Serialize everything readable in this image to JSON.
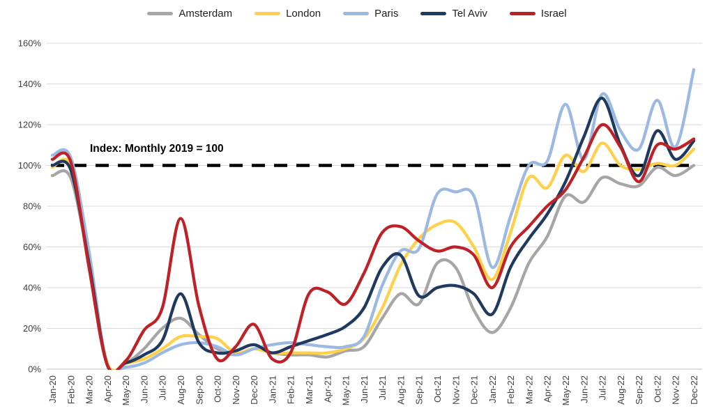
{
  "chart_data": {
    "type": "line",
    "title": "",
    "annotation": "Index: Monthly 2019 = 100",
    "legend_position": "top",
    "grid": true,
    "line_smoothing": true,
    "y_axis": {
      "min": 0,
      "max": 160,
      "step": 20,
      "suffix": "%"
    },
    "reference_line": {
      "value": 100,
      "style": "dashed",
      "color": "#000000",
      "label": "Index: Monthly 2019 = 100"
    },
    "x_categories": [
      "Jan-20",
      "Feb-20",
      "Mar-20",
      "Apr-20",
      "May-20",
      "Jun-20",
      "Jul-20",
      "Aug-20",
      "Sep-20",
      "Oct-20",
      "Nov-20",
      "Dec-20",
      "Jan-21",
      "Feb-21",
      "Mar-21",
      "Apr-21",
      "May-21",
      "Jun-21",
      "Jul-21",
      "Aug-21",
      "Sep-21",
      "Oct-21",
      "Nov-21",
      "Dec-21",
      "Jan-22",
      "Feb-22",
      "Mar-22",
      "Apr-22",
      "May-22",
      "Jun-22",
      "Jul-22",
      "Aug-22",
      "Sep-22",
      "Oct-22",
      "Nov-22",
      "Dec-22"
    ],
    "series": [
      {
        "name": "Amsterdam",
        "color": "#A6A6A6",
        "values": [
          95,
          94,
          52,
          3,
          3,
          10,
          20,
          25,
          17,
          10,
          7,
          10,
          8,
          7,
          7,
          6,
          9,
          11,
          25,
          37,
          32,
          52,
          50,
          29,
          18,
          30,
          52,
          65,
          85,
          82,
          94,
          91,
          90,
          99,
          95,
          100
        ]
      },
      {
        "name": "London",
        "color": "#FFD04A",
        "values": [
          99,
          100,
          55,
          3,
          3,
          5,
          10,
          16,
          16,
          15,
          8,
          10,
          8,
          8,
          8,
          8,
          10,
          15,
          30,
          51,
          64,
          71,
          72,
          60,
          44,
          67,
          94,
          89,
          105,
          97,
          111,
          100,
          98,
          101,
          100,
          108
        ]
      },
      {
        "name": "Paris",
        "color": "#9BB9E2",
        "values": [
          105,
          104,
          58,
          2,
          1,
          3,
          8,
          12,
          13,
          11,
          7,
          10,
          12,
          13,
          12,
          11,
          11,
          16,
          41,
          58,
          59,
          86,
          87,
          85,
          50,
          75,
          100,
          102,
          130,
          103,
          135,
          117,
          108,
          132,
          109,
          147
        ]
      },
      {
        "name": "Tel Aviv",
        "color": "#1F3A5F",
        "values": [
          100,
          98,
          52,
          2,
          3,
          7,
          14,
          37,
          13,
          8,
          9,
          12,
          8,
          11,
          14,
          17,
          21,
          30,
          50,
          56,
          36,
          40,
          41,
          37,
          27,
          50,
          64,
          76,
          92,
          114,
          133,
          110,
          95,
          117,
          103,
          112
        ]
      },
      {
        "name": "Israel",
        "color": "#BE2126",
        "values": [
          103,
          102,
          50,
          2,
          4,
          19,
          30,
          74,
          31,
          5,
          11,
          22,
          5,
          8,
          37,
          38,
          32,
          47,
          67,
          70,
          63,
          58,
          60,
          56,
          40,
          60,
          70,
          80,
          88,
          104,
          120,
          109,
          92,
          110,
          108,
          113
        ]
      }
    ],
    "colors": {
      "gridline": "#D9D9D9",
      "axis_line": "#BFBFBF",
      "tick_label": "#404040",
      "reference": "#000000"
    }
  }
}
